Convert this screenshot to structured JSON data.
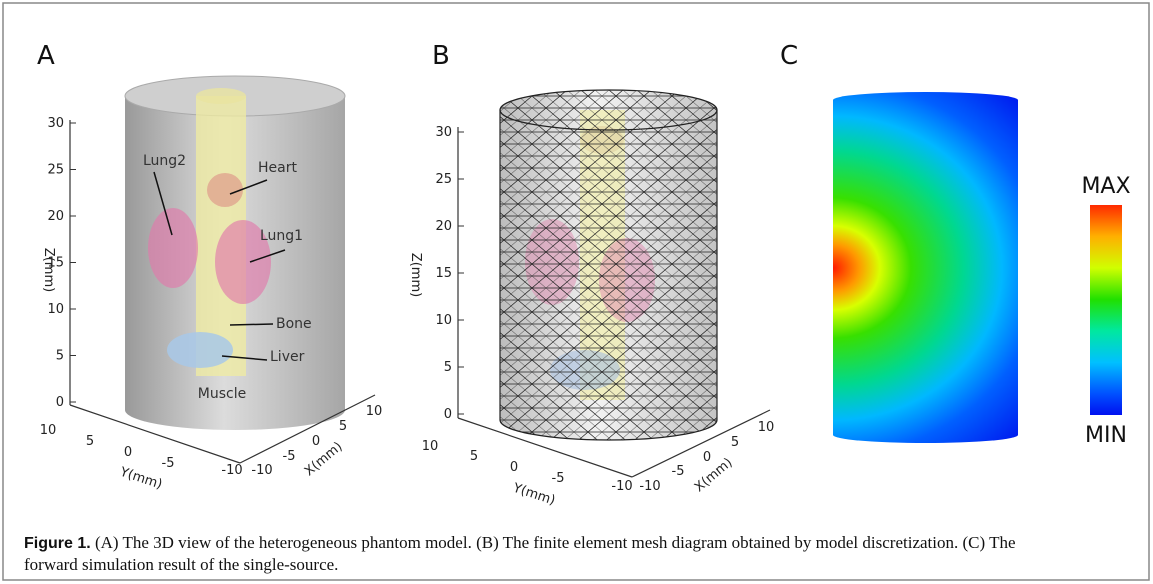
{
  "panels": [
    {
      "label": "A",
      "z_label": "Z(mm)",
      "z_ticks": [
        "0",
        "5",
        "10",
        "15",
        "20",
        "25",
        "30"
      ],
      "y_label": "Y(mm)",
      "y_ticks": [
        "10",
        "5",
        "0",
        "-5",
        "-10"
      ],
      "x_label": "X(mm)",
      "x_ticks": [
        "-10",
        "-5",
        "0",
        "5",
        "10"
      ],
      "organs": [
        "Lung2",
        "Heart",
        "Lung1",
        "Bone",
        "Liver",
        "Muscle"
      ]
    },
    {
      "label": "B",
      "z_label": "Z(mm)",
      "z_ticks": [
        "0",
        "5",
        "10",
        "15",
        "20",
        "25",
        "30"
      ],
      "y_label": "Y(mm)",
      "y_ticks": [
        "10",
        "5",
        "0",
        "-5",
        "-10"
      ],
      "x_label": "X(mm)",
      "x_ticks": [
        "-10",
        "-5",
        "0",
        "5",
        "10"
      ]
    },
    {
      "label": "C",
      "colorbar_max": "MAX",
      "colorbar_min": "MIN"
    }
  ],
  "caption": {
    "label": "Figure 1.",
    "text": "(A) The 3D view of the heterogeneous phantom model. (B) The finite element mesh diagram obtained by model discretization. (C) The forward simulation result of the single-source."
  }
}
